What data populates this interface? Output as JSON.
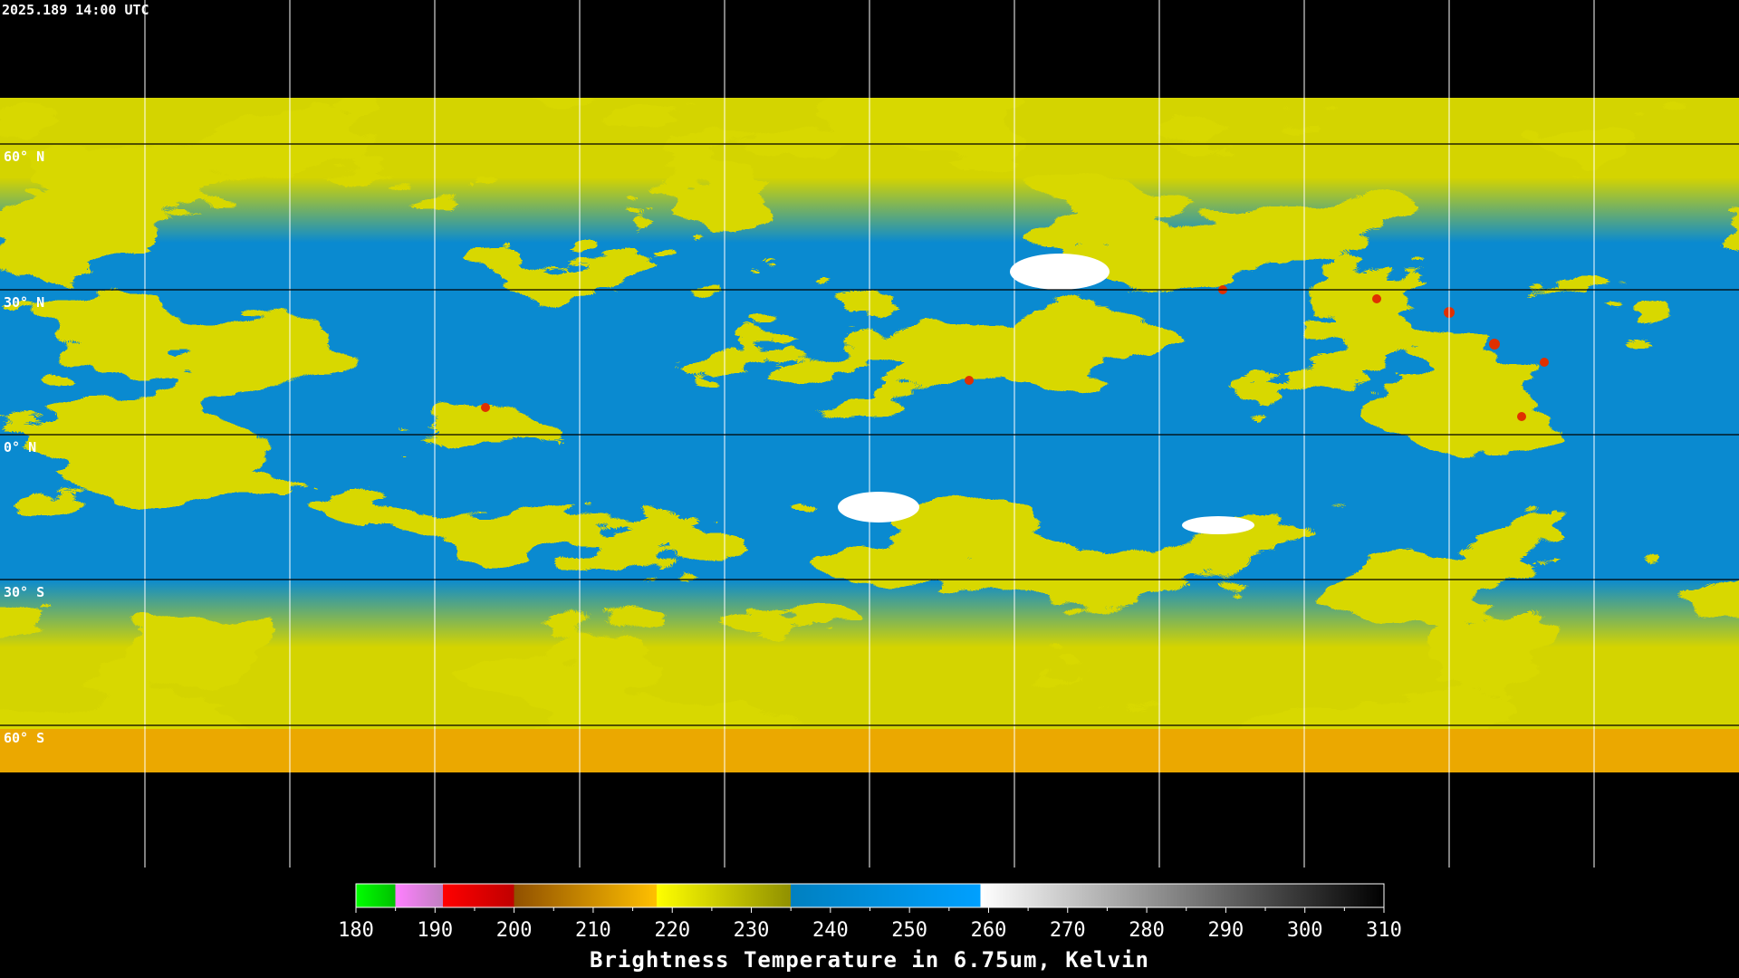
{
  "timestamp": "2025.189 14:00 UTC",
  "latitude_labels": [
    "60° N",
    "30° N",
    "0° N",
    "30° S",
    "60° S"
  ],
  "colorbar": {
    "label": "Brightness Temperature in 6.75um, Kelvin",
    "ticks": [
      180,
      190,
      200,
      210,
      220,
      230,
      240,
      250,
      260,
      270,
      280,
      290,
      300,
      310
    ],
    "stops": [
      {
        "value": 180,
        "color": "#00ff00"
      },
      {
        "value": 185,
        "color": "#00c000"
      },
      {
        "value": 185,
        "color": "#ff80ff"
      },
      {
        "value": 191,
        "color": "#c080c0"
      },
      {
        "value": 191,
        "color": "#ff0000"
      },
      {
        "value": 200,
        "color": "#c00000"
      },
      {
        "value": 200,
        "color": "#905000"
      },
      {
        "value": 218,
        "color": "#ffc000"
      },
      {
        "value": 218,
        "color": "#ffff00"
      },
      {
        "value": 235,
        "color": "#909000"
      },
      {
        "value": 235,
        "color": "#0080c0"
      },
      {
        "value": 259,
        "color": "#00a0ff"
      },
      {
        "value": 259,
        "color": "#ffffff"
      },
      {
        "value": 310,
        "color": "#000000"
      }
    ]
  }
}
